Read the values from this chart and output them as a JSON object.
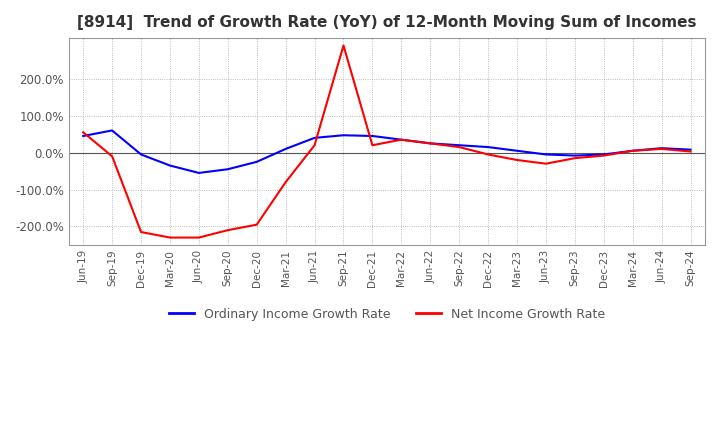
{
  "title": "[8914]  Trend of Growth Rate (YoY) of 12-Month Moving Sum of Incomes",
  "title_fontsize": 11,
  "ylim": [
    -250,
    310
  ],
  "yticks": [
    -200,
    -100,
    0,
    100,
    200
  ],
  "ytick_labels": [
    "-200.0%",
    "-100.0%",
    "0.0%",
    "100.0%",
    "200.0%"
  ],
  "background_color": "#ffffff",
  "grid_color": "#aaaaaa",
  "legend_labels": [
    "Ordinary Income Growth Rate",
    "Net Income Growth Rate"
  ],
  "legend_colors": [
    "#0000ff",
    "#ff0000"
  ],
  "x_labels": [
    "Jun-19",
    "Sep-19",
    "Dec-19",
    "Mar-20",
    "Jun-20",
    "Sep-20",
    "Dec-20",
    "Mar-21",
    "Jun-21",
    "Sep-21",
    "Dec-21",
    "Mar-22",
    "Jun-22",
    "Sep-22",
    "Dec-22",
    "Mar-23",
    "Jun-23",
    "Sep-23",
    "Dec-23",
    "Mar-24",
    "Jun-24",
    "Sep-24"
  ],
  "ordinary_income": [
    45,
    60,
    -5,
    -35,
    -55,
    -45,
    -25,
    10,
    40,
    47,
    45,
    35,
    25,
    20,
    15,
    5,
    -5,
    -8,
    -5,
    5,
    12,
    8
  ],
  "net_income": [
    55,
    -10,
    -215,
    -230,
    -230,
    -210,
    -195,
    -80,
    20,
    290,
    20,
    35,
    25,
    15,
    -5,
    -20,
    -30,
    -15,
    -8,
    5,
    10,
    3
  ],
  "frame_color": "#999999",
  "line_width": 1.5,
  "zero_line_color": "#555555"
}
